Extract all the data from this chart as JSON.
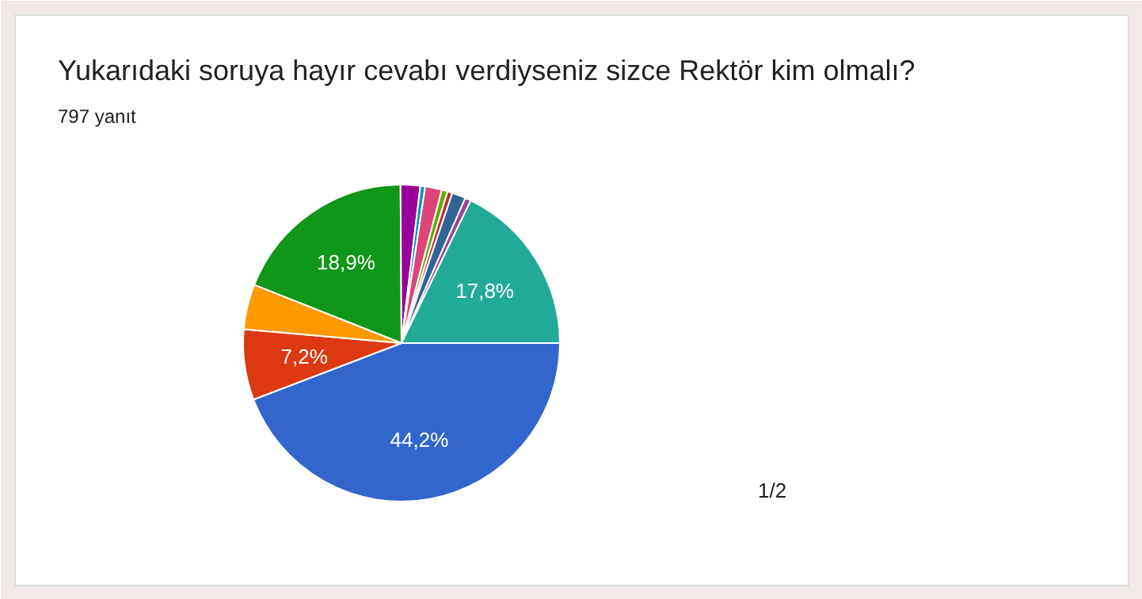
{
  "chart_data": {
    "type": "pie",
    "title": "Yukarıdaki soruya hayır cevabı verdiyseniz sizce Rektör kim olmalı?",
    "subtitle": "797 yanıt",
    "categories": [
      null,
      null,
      null,
      null,
      null,
      null,
      null,
      null,
      null,
      null,
      null,
      null
    ],
    "values": [
      44.2,
      7.2,
      4.6,
      18.9,
      2.0,
      0.5,
      1.7,
      0.6,
      0.5,
      1.4,
      0.6,
      17.8
    ],
    "colors": [
      "#3366cc",
      "#dc3912",
      "#ff9900",
      "#109618",
      "#990099",
      "#0099c6",
      "#dd4477",
      "#66aa00",
      "#b82e2e",
      "#316395",
      "#994499",
      "#22aa99"
    ],
    "value_labels": [
      "44,2%",
      "7,2%",
      null,
      "18,9%",
      null,
      null,
      null,
      null,
      null,
      null,
      null,
      "17,8%"
    ],
    "annotations": [
      "1/2"
    ]
  }
}
